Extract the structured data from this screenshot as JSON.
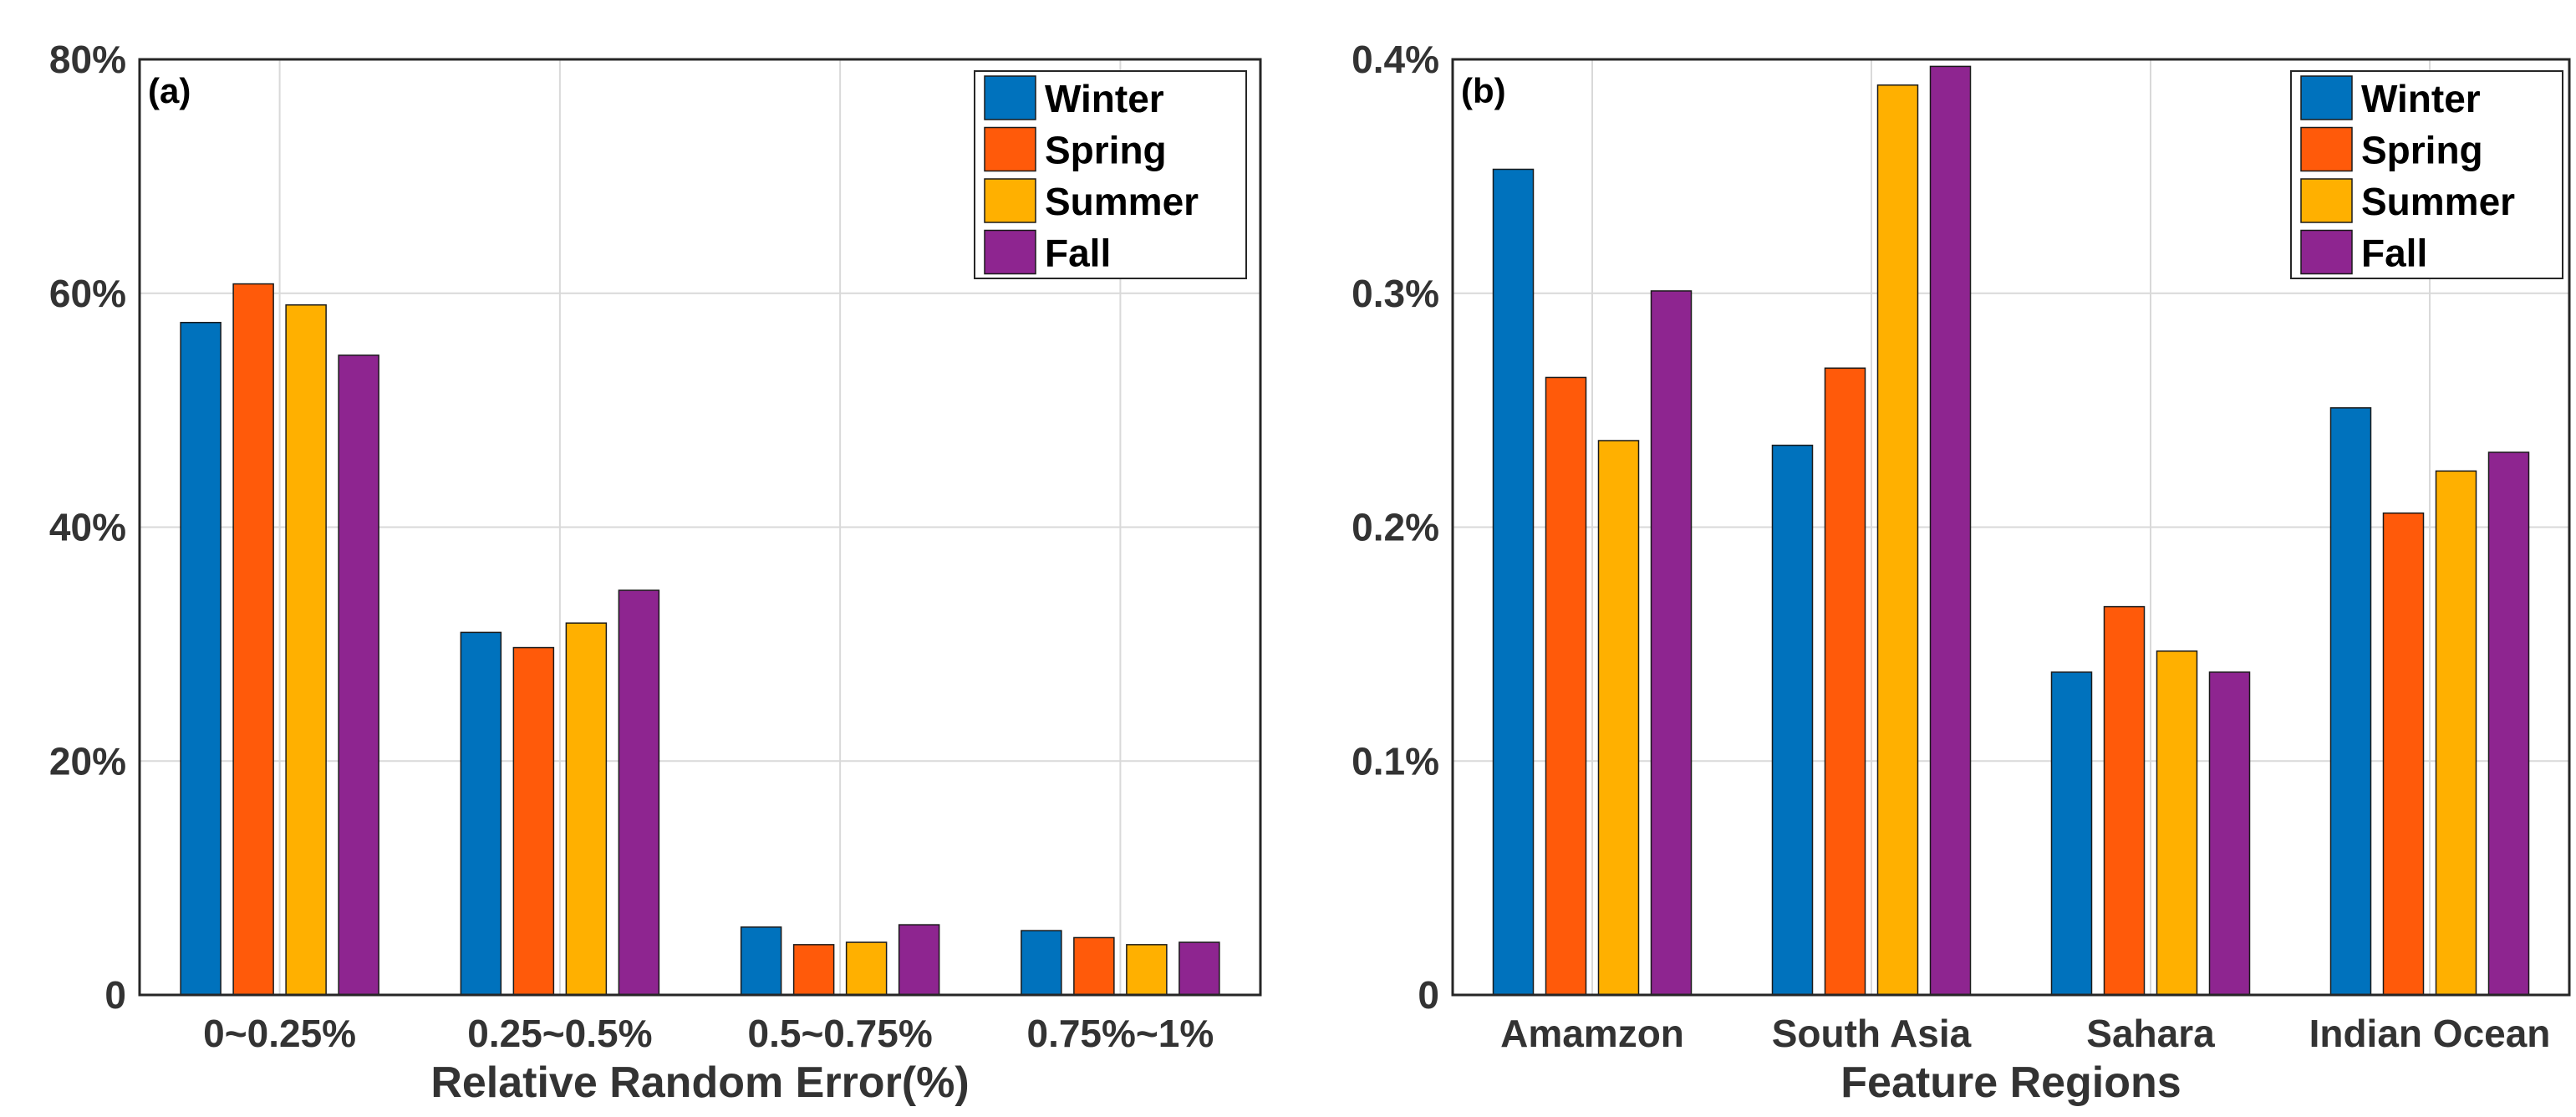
{
  "series_colors": {
    "Winter": "#0072BD",
    "Spring": "#FF5A0A",
    "Summer": "#FFB000",
    "Fall": "#8E2590"
  },
  "chart_data": [
    {
      "type": "bar",
      "panel": "(a)",
      "title": "",
      "xlabel": "Relative Random Error(%)",
      "ylabel": "",
      "categories": [
        "0~0.25%",
        "0.25~0.5%",
        "0.5~0.75%",
        "0.75%~1%"
      ],
      "series": [
        {
          "name": "Winter",
          "values": [
            57.5,
            31.0,
            5.8,
            5.5
          ]
        },
        {
          "name": "Spring",
          "values": [
            60.8,
            29.7,
            4.3,
            4.9
          ]
        },
        {
          "name": "Summer",
          "values": [
            59.0,
            31.8,
            4.5,
            4.3
          ]
        },
        {
          "name": "Fall",
          "values": [
            54.7,
            34.6,
            6.0,
            4.5
          ]
        }
      ],
      "ylim": [
        0,
        80
      ],
      "yticks": [
        0,
        20,
        40,
        60,
        80
      ],
      "ytick_labels": [
        "0",
        "20%",
        "40%",
        "60%",
        "80%"
      ],
      "grid": true,
      "legend": {
        "entries": [
          "Winter",
          "Spring",
          "Summer",
          "Fall"
        ],
        "position": "top-right"
      }
    },
    {
      "type": "bar",
      "panel": "(b)",
      "title": "",
      "xlabel": "Feature Regions",
      "ylabel": "",
      "categories": [
        "Amamzon",
        "South Asia",
        "Sahara",
        "Indian Ocean"
      ],
      "series": [
        {
          "name": "Winter",
          "values": [
            0.353,
            0.235,
            0.138,
            0.251
          ]
        },
        {
          "name": "Spring",
          "values": [
            0.264,
            0.268,
            0.166,
            0.206
          ]
        },
        {
          "name": "Summer",
          "values": [
            0.237,
            0.389,
            0.147,
            0.224
          ]
        },
        {
          "name": "Fall",
          "values": [
            0.301,
            0.397,
            0.138,
            0.232
          ]
        }
      ],
      "ylim": [
        0,
        0.4
      ],
      "yticks": [
        0,
        0.1,
        0.2,
        0.3,
        0.4
      ],
      "ytick_labels": [
        "0",
        "0.1%",
        "0.2%",
        "0.3%",
        "0.4%"
      ],
      "grid": true,
      "legend": {
        "entries": [
          "Winter",
          "Spring",
          "Summer",
          "Fall"
        ],
        "position": "top-right"
      }
    }
  ]
}
